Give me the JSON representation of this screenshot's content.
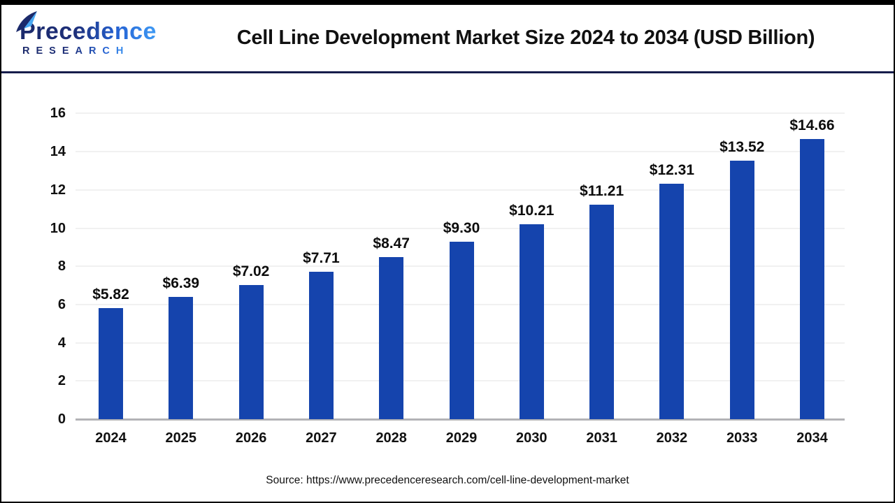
{
  "logo": {
    "name": "Precedence",
    "subname": "RESEARCH"
  },
  "header": {
    "title": "Cell Line Development Market Size 2024 to 2034 (USD Billion)"
  },
  "chart_data": {
    "type": "bar",
    "title": "Cell Line Development Market Size 2024 to 2034 (USD Billion)",
    "categories": [
      "2024",
      "2025",
      "2026",
      "2027",
      "2028",
      "2029",
      "2030",
      "2031",
      "2032",
      "2033",
      "2034"
    ],
    "values": [
      5.82,
      6.39,
      7.02,
      7.71,
      8.47,
      9.3,
      10.21,
      11.21,
      12.31,
      13.52,
      14.66
    ],
    "value_labels": [
      "$5.82",
      "$6.39",
      "$7.02",
      "$7.71",
      "$8.47",
      "$9.30",
      "$10.21",
      "$11.21",
      "$12.31",
      "$13.52",
      "$14.66"
    ],
    "yticks": [
      0,
      2,
      4,
      6,
      8,
      10,
      12,
      14,
      16
    ],
    "ylim": [
      0,
      16
    ],
    "xlabel": "",
    "ylabel": "",
    "grid": true,
    "legend": "none"
  },
  "footer": {
    "source": "Source: https://www.precedenceresearch.com/cell-line-development-market"
  },
  "colors": {
    "bar": "#1544ad",
    "header_rule": "#161d4b",
    "frame_border": "#000000",
    "gridline": "#f1f1f1",
    "axis_line": "#b3b3b6",
    "title_text": "#111111",
    "logo_navy": "#1b2a6b",
    "logo_blue": "#3f9bf5"
  }
}
